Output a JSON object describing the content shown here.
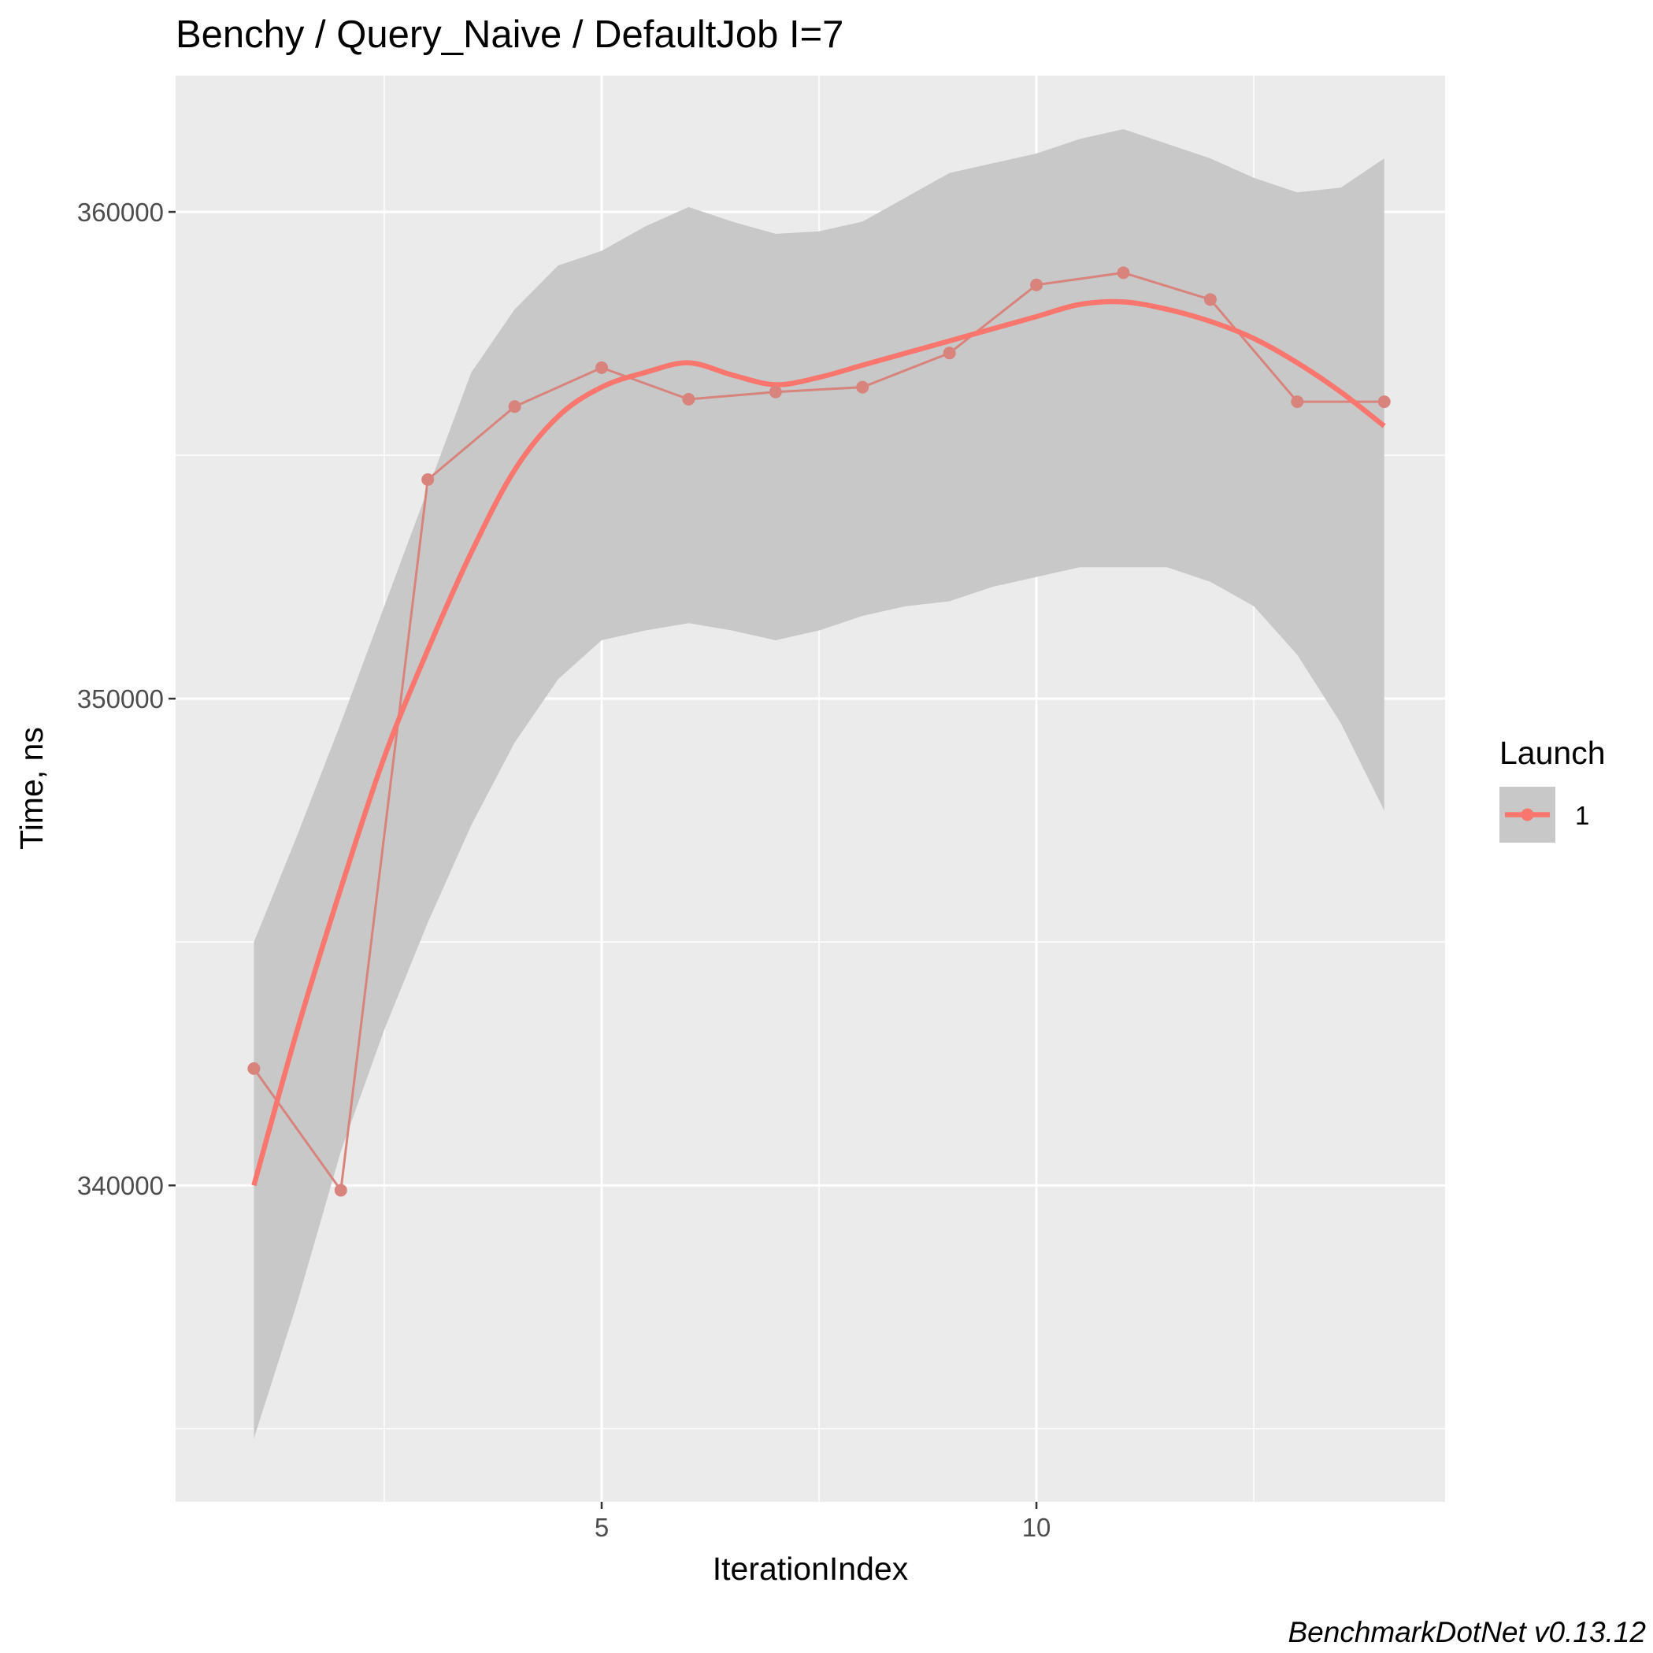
{
  "chart_data": {
    "type": "line",
    "title": "Benchy / Query_Naive / DefaultJob I=7",
    "xlabel": "IterationIndex",
    "ylabel": "Time, ns",
    "xlim": [
      0.1,
      14.7
    ],
    "ylim": [
      333500,
      362800
    ],
    "x_ticks": [
      5,
      10
    ],
    "x_tick_labels": [
      "5",
      "10"
    ],
    "y_ticks": [
      340000,
      350000,
      360000
    ],
    "y_tick_labels": [
      "340000",
      "350000",
      "360000"
    ],
    "grid": true,
    "legend": {
      "title": "Launch",
      "position": "right",
      "entries": [
        "1"
      ]
    },
    "caption": "BenchmarkDotNet v0.13.12",
    "colors": {
      "series": "#f8766d",
      "raw_line": "#d9837d",
      "band": "#c8c8c8",
      "panel": "#ebebeb"
    },
    "series": [
      {
        "name": "1",
        "x": [
          1,
          2,
          3,
          4,
          5,
          6,
          7,
          8,
          9,
          10,
          11,
          12,
          13,
          14
        ],
        "values": [
          342400,
          339900,
          354500,
          356000,
          356800,
          356150,
          356300,
          356400,
          357100,
          358500,
          358750,
          358200,
          356100,
          356100
        ]
      }
    ],
    "smooth": {
      "x": [
        1,
        1.5,
        2,
        2.5,
        3,
        3.5,
        4,
        4.5,
        5,
        5.5,
        6,
        6.5,
        7,
        7.5,
        8,
        8.5,
        9,
        9.5,
        10,
        10.5,
        11,
        11.5,
        12,
        12.5,
        13,
        13.5,
        14
      ],
      "y": [
        340000,
        343200,
        346100,
        348800,
        351000,
        353000,
        354700,
        355800,
        356400,
        356700,
        356900,
        356650,
        356450,
        356600,
        356850,
        357100,
        357350,
        357600,
        357850,
        358100,
        358150,
        358000,
        357750,
        357400,
        356900,
        356300,
        355600
      ],
      "ymin": [
        334800,
        337600,
        340700,
        343200,
        345400,
        347400,
        349100,
        350400,
        351200,
        351400,
        351550,
        351400,
        351200,
        351400,
        351700,
        351900,
        352000,
        352300,
        352500,
        352700,
        352700,
        352700,
        352400,
        351900,
        350900,
        349500,
        347700
      ],
      "ymax": [
        345000,
        347200,
        349500,
        351900,
        354300,
        356700,
        358000,
        358900,
        359200,
        359700,
        360100,
        359800,
        359550,
        359600,
        359800,
        360300,
        360800,
        361000,
        361200,
        361500,
        361700,
        361400,
        361100,
        360700,
        360400,
        360500,
        361100
      ]
    }
  }
}
